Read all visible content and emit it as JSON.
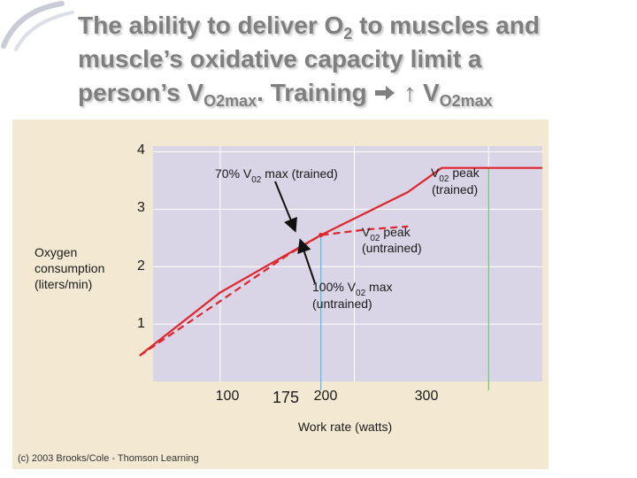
{
  "slide": {
    "title": {
      "line1_pre": "The ability to deliver O",
      "line1_sub": "2",
      "line1_post": " to muscles and",
      "line2": "muscle’s oxidative capacity limit a",
      "line3_pre": "person’s V",
      "line3_sub": "O2max",
      "line3_post": ". Training ",
      "line3_tail": " ↑ V",
      "line3_sub2": "O2max"
    },
    "copyright": "(c) 2003 Brooks/Cole - Thomson Learning"
  },
  "colors": {
    "title": "#7f7f7f",
    "panel_bg": "#f3e9d3",
    "plot_bg": "#d9d4e6",
    "curve": "#e0242b",
    "line_175": "#5ab8e6",
    "line_300": "#6ac46a",
    "arrow": "#111111"
  },
  "chart_data": {
    "type": "line",
    "xlabel": "Work rate (watts)",
    "ylabel": [
      "Oxygen",
      "consumption",
      "(liters/min)"
    ],
    "xlim": [
      50,
      340
    ],
    "ylim": [
      0,
      4.1
    ],
    "x_ticks": [
      100,
      200,
      300
    ],
    "x_tick_labels": [
      "100",
      "200",
      "300"
    ],
    "highlight_tick": {
      "value": 175,
      "label": "175"
    },
    "y_ticks": [
      1,
      2,
      3,
      4
    ],
    "y_tick_labels": [
      "1",
      "2",
      "3",
      "4"
    ],
    "grid": true,
    "series": [
      {
        "style": "solid",
        "x": [
          40,
          100,
          175,
          240,
          265,
          340
        ],
        "y": [
          0.45,
          1.55,
          2.55,
          3.3,
          3.72,
          3.72
        ]
      },
      {
        "style": "dashed",
        "x": [
          40,
          100,
          150,
          175,
          210,
          240
        ],
        "y": [
          0.45,
          1.4,
          2.2,
          2.55,
          2.65,
          2.7
        ]
      }
    ],
    "vlines": [
      {
        "x": 175,
        "color": "#5ab8e6"
      },
      {
        "x": 300,
        "color": "#6ac46a"
      }
    ],
    "annotations": [
      {
        "text": "70% V",
        "sub": "02",
        "rest": " max (trained)",
        "point_x": 175,
        "point_y": 2.55
      },
      {
        "text": "V",
        "sub": "02",
        "rest": " peak",
        "line2": "(trained)"
      },
      {
        "text": "V",
        "sub": "02",
        "rest": " peak",
        "line2": "(untrained)"
      },
      {
        "text": "100% V",
        "sub": "02",
        "rest": " max",
        "line2": "(untrained)",
        "point_x": 175,
        "point_y": 2.55
      }
    ]
  }
}
